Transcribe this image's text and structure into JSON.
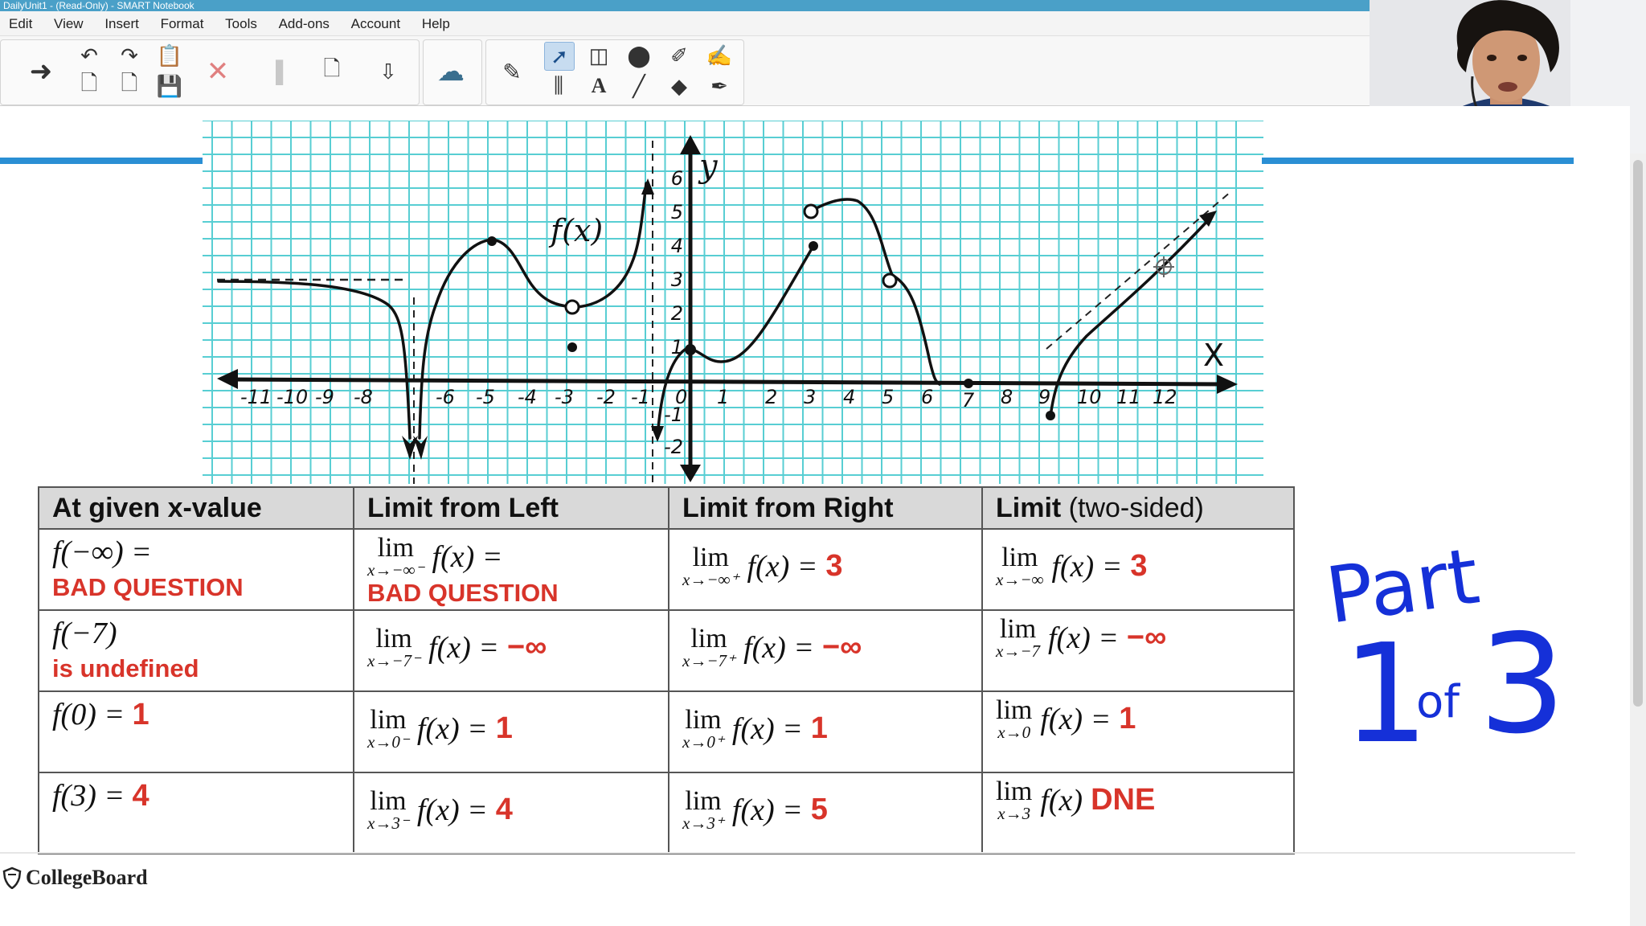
{
  "window": {
    "title": "DailyUnit1 - (Read-Only) - SMART Notebook"
  },
  "menu": {
    "items": [
      "Edit",
      "View",
      "Insert",
      "Format",
      "Tools",
      "Add-ons",
      "Account",
      "Help"
    ]
  },
  "graph": {
    "function_label": "f(x)",
    "y_axis_label": "y",
    "x_axis_label": "X",
    "x_ticks_left": [
      "-11",
      "-10",
      "-9",
      "-8",
      "-6",
      "-5",
      "-4",
      "-3",
      "-2",
      "-1"
    ],
    "x_ticks_right": [
      "0",
      "1",
      "2",
      "3",
      "4",
      "5",
      "6",
      "7",
      "8",
      "9",
      "10",
      "11",
      "12"
    ],
    "y_ticks": [
      "6",
      "5",
      "4",
      "3",
      "2",
      "1",
      "-1",
      "-2"
    ]
  },
  "table": {
    "headers": [
      "At given x-value",
      "Limit from Left",
      "Limit from Right",
      "Limit"
    ],
    "header_suffix": "(two-sided)",
    "rows": [
      {
        "given": {
          "expr": "f(−∞) =",
          "answer": "BAD QUESTION"
        },
        "left": {
          "sub": "x→−∞⁻",
          "expr": "f(x) =",
          "answer": "BAD QUESTION"
        },
        "right": {
          "sub": "x→−∞⁺",
          "expr": "f(x) =",
          "answer": "3"
        },
        "two": {
          "sub": "x→−∞",
          "expr": "f(x) =",
          "answer": "3"
        }
      },
      {
        "given": {
          "expr": "f(−7)",
          "answer": "is undefined"
        },
        "left": {
          "sub": "x→−7⁻",
          "expr": "f(x) =",
          "answer": "−∞"
        },
        "right": {
          "sub": "x→−7⁺",
          "expr": "f(x) =",
          "answer": "−∞"
        },
        "two": {
          "sub": "x→−7",
          "expr": "f(x) =",
          "answer": "−∞"
        }
      },
      {
        "given": {
          "expr": "f(0) =",
          "answer": "1"
        },
        "left": {
          "sub": "x→0⁻",
          "expr": "f(x) =",
          "answer": "1"
        },
        "right": {
          "sub": "x→0⁺",
          "expr": "f(x) =",
          "answer": "1"
        },
        "two": {
          "sub": "x→0",
          "expr": "f(x) =",
          "answer": "1"
        }
      },
      {
        "given": {
          "expr": "f(3) =",
          "answer": "4"
        },
        "left": {
          "sub": "x→3⁻",
          "expr": "f(x) =",
          "answer": "4"
        },
        "right": {
          "sub": "x→3⁺",
          "expr": "f(x) =",
          "answer": "5"
        },
        "two": {
          "sub": "x→3",
          "expr": "f(x)",
          "answer": "DNE"
        }
      }
    ],
    "lim_word": "lim"
  },
  "annotation": {
    "line1": "Part",
    "big1": "1",
    "of": "of",
    "big3": "3"
  },
  "footer": {
    "brand": "CollegeBoard"
  },
  "colors": {
    "answer_red": "#d8342a",
    "grid_cyan": "#3cc6cc",
    "accent_blue": "#2a8fd4",
    "pen_blue": "#1530d8"
  }
}
